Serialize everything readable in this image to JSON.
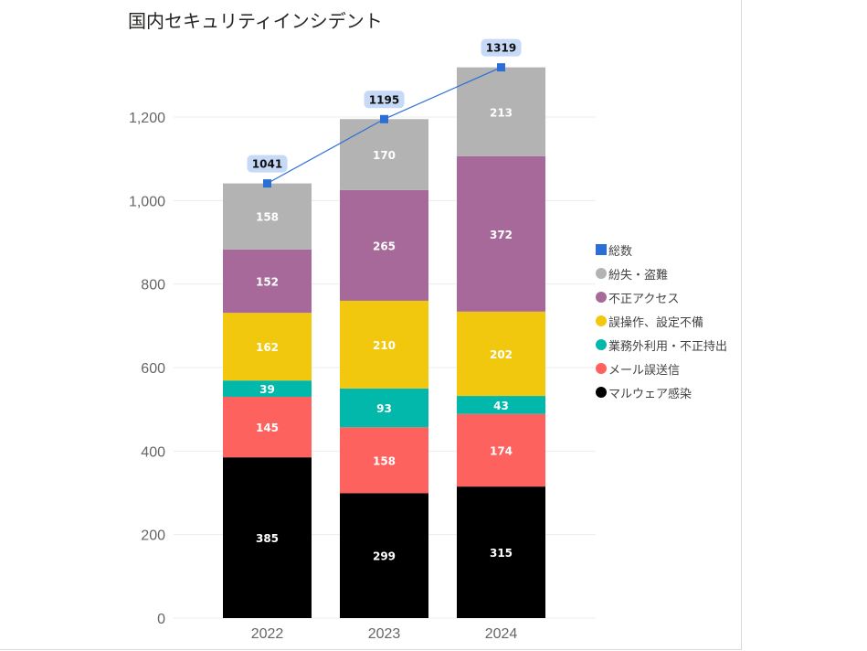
{
  "chart_data": {
    "type": "bar",
    "stacked": true,
    "title": "国内セキュリティインシデント",
    "xlabel": "",
    "ylabel": "",
    "categories": [
      "2022",
      "2023",
      "2024"
    ],
    "ylim": [
      0,
      1320
    ],
    "yticks": [
      0,
      200,
      400,
      600,
      800,
      1000,
      1200
    ],
    "ytick_labels": [
      "0",
      "200",
      "400",
      "600",
      "800",
      "1,000",
      "1,200"
    ],
    "grid": true,
    "legend_position": "right",
    "series": [
      {
        "name": "マルウェア感染",
        "color": "#000000",
        "values": [
          385,
          299,
          315
        ]
      },
      {
        "name": "メール誤送信",
        "color": "#FD625E",
        "values": [
          145,
          158,
          174
        ]
      },
      {
        "name": "業務外利用・不正持出",
        "color": "#01B8AA",
        "values": [
          39,
          93,
          43
        ]
      },
      {
        "name": "誤操作、設定不備",
        "color": "#F2C80F",
        "values": [
          162,
          210,
          202
        ]
      },
      {
        "name": "不正アクセス",
        "color": "#A66999",
        "values": [
          152,
          265,
          372
        ]
      },
      {
        "name": "紛失・盗難",
        "color": "#B3B3B3",
        "values": [
          158,
          170,
          213
        ]
      }
    ],
    "line_series": {
      "name": "総数",
      "type": "line",
      "color": "#2B6FD6",
      "label_bg": "#C6D9F7",
      "values": [
        1041,
        1195,
        1319
      ]
    },
    "legend": [
      {
        "name": "総数",
        "color": "#2B6FD6",
        "shape": "square"
      },
      {
        "name": "紛失・盗難",
        "color": "#B3B3B3",
        "shape": "circle"
      },
      {
        "name": "不正アクセス",
        "color": "#A66999",
        "shape": "circle"
      },
      {
        "name": "誤操作、設定不備",
        "color": "#F2C80F",
        "shape": "circle"
      },
      {
        "name": "業務外利用・不正持出",
        "color": "#01B8AA",
        "shape": "circle"
      },
      {
        "name": "メール誤送信",
        "color": "#FD625E",
        "shape": "circle"
      },
      {
        "name": "マルウェア感染",
        "color": "#000000",
        "shape": "circle"
      }
    ]
  }
}
